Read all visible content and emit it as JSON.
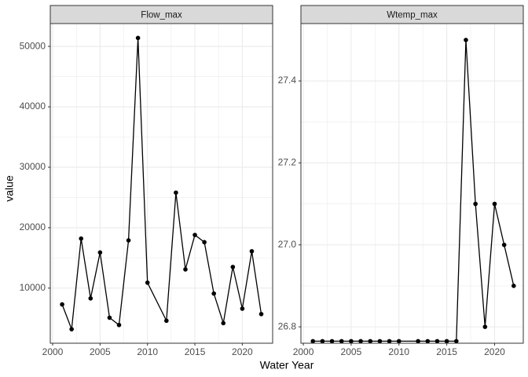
{
  "x_label": "Water Year",
  "y_label": "value",
  "chart_data": [
    {
      "type": "line",
      "title": "Flow_max",
      "color": "#000000",
      "grid": true,
      "x": [
        2001,
        2002,
        2003,
        2004,
        2005,
        2006,
        2007,
        2008,
        2009,
        2010,
        2012,
        2013,
        2014,
        2015,
        2016,
        2017,
        2018,
        2019,
        2020,
        2021,
        2022
      ],
      "values": [
        7300,
        3200,
        18200,
        8300,
        15900,
        5100,
        3900,
        17900,
        51400,
        10900,
        4600,
        25800,
        13100,
        18800,
        17600,
        9100,
        4200,
        13500,
        6600,
        16100,
        5700
      ],
      "xlim": [
        1999.75,
        2023.2
      ],
      "xticks": [
        2000,
        2005,
        2010,
        2015,
        2020
      ],
      "ylim": [
        880,
        53780
      ],
      "yticks": [
        10000,
        20000,
        30000,
        40000,
        50000
      ]
    },
    {
      "type": "line",
      "title": "Wtemp_max",
      "color": "#000000",
      "grid": true,
      "x": [
        2001,
        2002,
        2003,
        2004,
        2005,
        2006,
        2007,
        2008,
        2009,
        2010,
        2012,
        2013,
        2014,
        2015,
        2016,
        2017,
        2018,
        2019,
        2020,
        2021,
        2022
      ],
      "values": [
        26.765,
        26.765,
        26.765,
        26.765,
        26.765,
        26.765,
        26.765,
        26.765,
        26.765,
        26.765,
        26.765,
        26.765,
        26.765,
        26.765,
        26.765,
        27.5,
        27.1,
        26.8,
        27.1,
        27.0,
        26.9
      ],
      "xlim": [
        1999.75,
        2023.0
      ],
      "xticks": [
        2000,
        2005,
        2010,
        2015,
        2020
      ],
      "ylim": [
        26.76,
        27.54
      ],
      "yticks": [
        26.8,
        {
          "value": 27,
          "label": "27.0"
        },
        27.2,
        27.4
      ]
    }
  ]
}
